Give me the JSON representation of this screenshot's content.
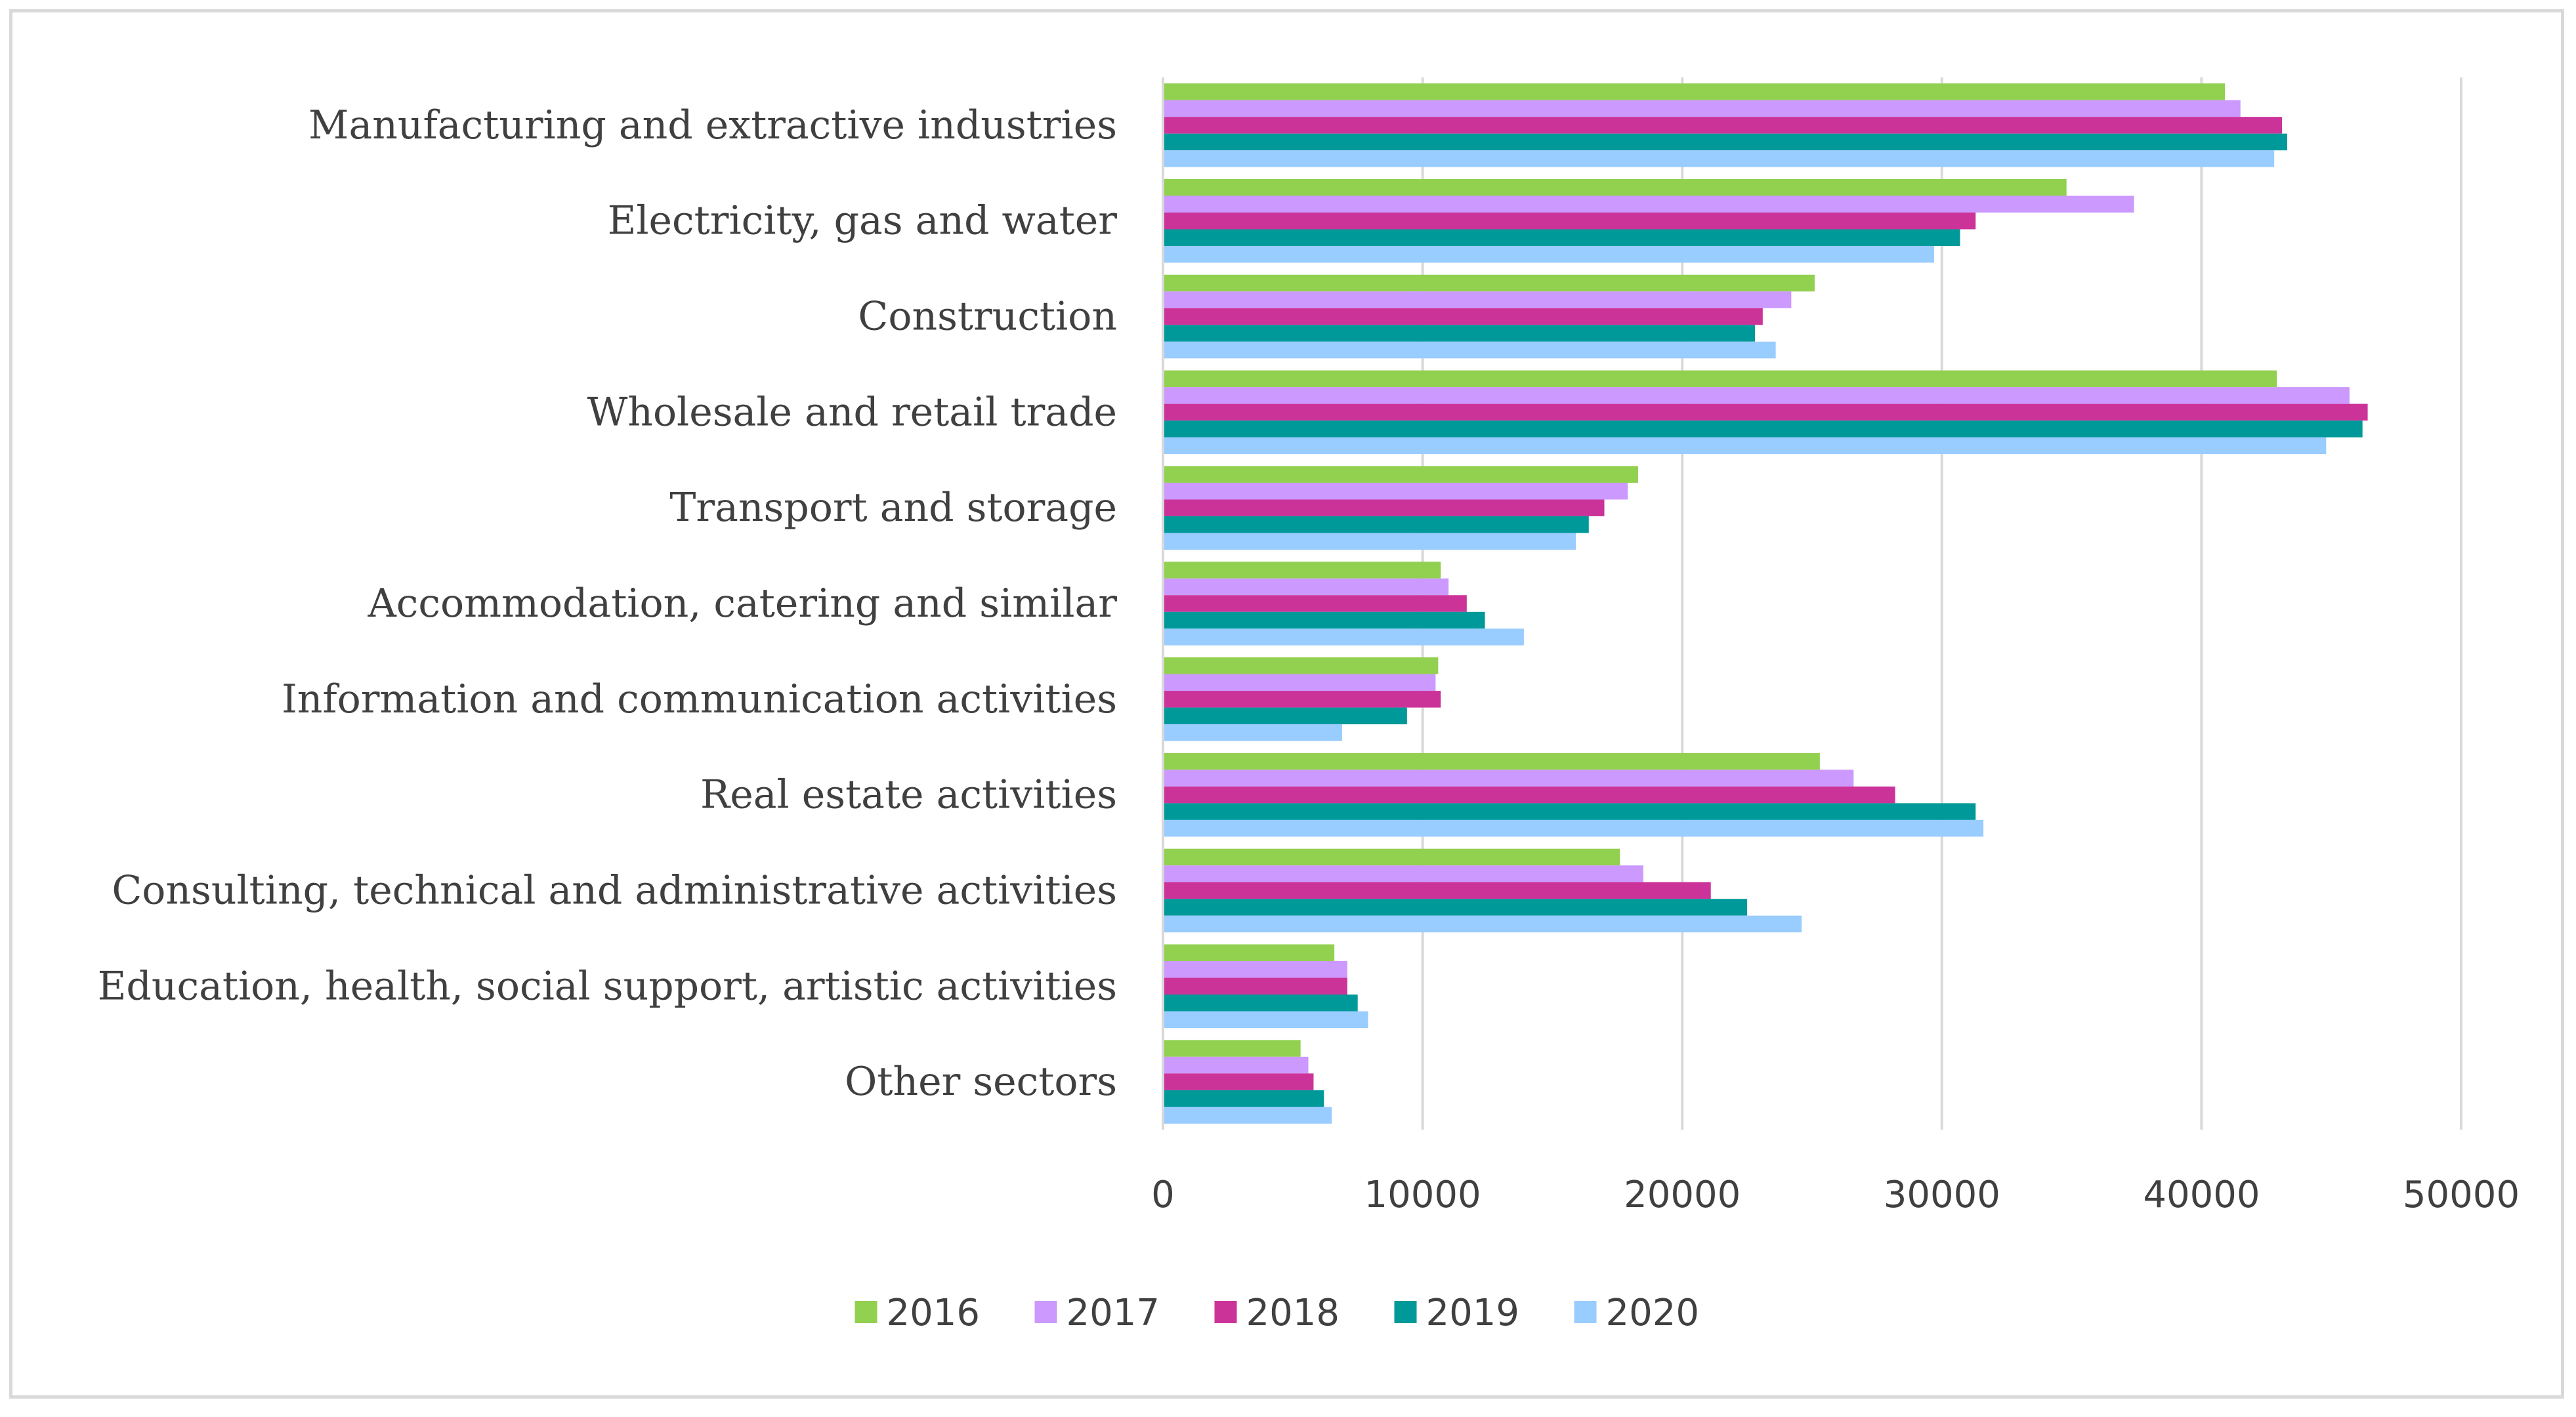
{
  "chart_data": {
    "type": "bar",
    "orientation": "horizontal",
    "categories": [
      "Manufacturing and extractive industries",
      "Electricity, gas and water",
      "Construction",
      "Wholesale and retail trade",
      "Transport and storage",
      "Accommodation, catering and similar",
      "Information and communication activities",
      "Real estate activities",
      "Consulting, technical and administrative activities",
      "Education, health, social support, artistic activities",
      "Other sectors"
    ],
    "series": [
      {
        "name": "2016",
        "color": "#92d050",
        "values": [
          40900,
          34800,
          25100,
          42900,
          18300,
          10700,
          10600,
          25300,
          17600,
          6600,
          5300
        ]
      },
      {
        "name": "2017",
        "color": "#cc99ff",
        "values": [
          41500,
          37400,
          24200,
          45700,
          17900,
          11000,
          10500,
          26600,
          18500,
          7100,
          5600
        ]
      },
      {
        "name": "2018",
        "color": "#cc3399",
        "values": [
          43100,
          31300,
          23100,
          46400,
          17000,
          11700,
          10700,
          28200,
          21100,
          7100,
          5800
        ]
      },
      {
        "name": "2019",
        "color": "#009999",
        "values": [
          43300,
          30700,
          22800,
          46200,
          16400,
          12400,
          9400,
          31300,
          22500,
          7500,
          6200
        ]
      },
      {
        "name": "2020",
        "color": "#99ccff",
        "values": [
          42800,
          29700,
          23600,
          44800,
          15900,
          13900,
          6900,
          31600,
          24600,
          7900,
          6500
        ]
      }
    ],
    "xlim": [
      0,
      50000
    ],
    "xticks": [
      0,
      10000,
      20000,
      30000,
      40000,
      50000
    ],
    "grid": "vertical",
    "legend": "bottom",
    "title": "",
    "xlabel": "",
    "ylabel": ""
  }
}
